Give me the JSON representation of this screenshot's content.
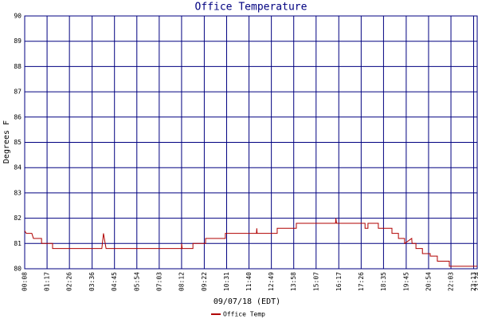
{
  "chart_data": {
    "type": "line",
    "title": "Office Temperature",
    "xlabel": "09/07/18 (EDT)",
    "ylabel": "Degrees F",
    "x": [
      "00:08",
      "00:13",
      "00:30",
      "00:35",
      "01:00",
      "01:00",
      "01:34",
      "01:34",
      "04:06",
      "04:11",
      "04:19",
      "08:12",
      "08:12",
      "08:14",
      "08:47",
      "08:47",
      "09:26",
      "09:26",
      "10:27",
      "10:27",
      "12:03",
      "12:04",
      "12:05",
      "13:07",
      "13:07",
      "14:06",
      "14:06",
      "16:07",
      "16:08",
      "16:10",
      "17:38",
      "17:38",
      "17:47",
      "17:47",
      "18:19",
      "18:19",
      "19:01",
      "19:01",
      "19:21",
      "19:21",
      "19:40",
      "19:40",
      "20:02",
      "20:03",
      "20:15",
      "20:15",
      "20:35",
      "20:35",
      "20:59",
      "20:59",
      "21:21",
      "21:21",
      "21:58",
      "21:58",
      "23:24"
    ],
    "series": [
      {
        "name": "Office Temp",
        "color": "#b00000",
        "values": [
          81.5,
          81.4,
          81.4,
          81.2,
          81.2,
          81.0,
          81.0,
          80.8,
          80.8,
          81.4,
          80.8,
          80.8,
          81.0,
          80.8,
          80.8,
          81.0,
          81.0,
          81.2,
          81.2,
          81.4,
          81.4,
          81.6,
          81.4,
          81.4,
          81.6,
          81.6,
          81.8,
          81.8,
          82.0,
          81.8,
          81.8,
          81.6,
          81.6,
          81.8,
          81.8,
          81.6,
          81.6,
          81.4,
          81.4,
          81.2,
          81.2,
          81.0,
          81.2,
          81.0,
          81.0,
          80.8,
          80.8,
          80.6,
          80.6,
          80.5,
          80.5,
          80.3,
          80.3,
          80.1,
          80.1
        ]
      }
    ],
    "xlim": [
      "00:08",
      "23:24"
    ],
    "xticks": [
      "00:08",
      "01:17",
      "02:26",
      "03:36",
      "04:45",
      "05:54",
      "07:03",
      "08:12",
      "09:22",
      "10:31",
      "11:40",
      "12:49",
      "13:58",
      "15:07",
      "16:17",
      "17:26",
      "18:35",
      "19:45",
      "20:54",
      "22:03",
      "23:13",
      "23:24"
    ],
    "ylim": [
      80,
      90
    ],
    "yticks": [
      80,
      81,
      82,
      83,
      84,
      85,
      86,
      87,
      88,
      89,
      90
    ],
    "grid": true,
    "grid_color": "#000080",
    "legend": "bottom"
  }
}
